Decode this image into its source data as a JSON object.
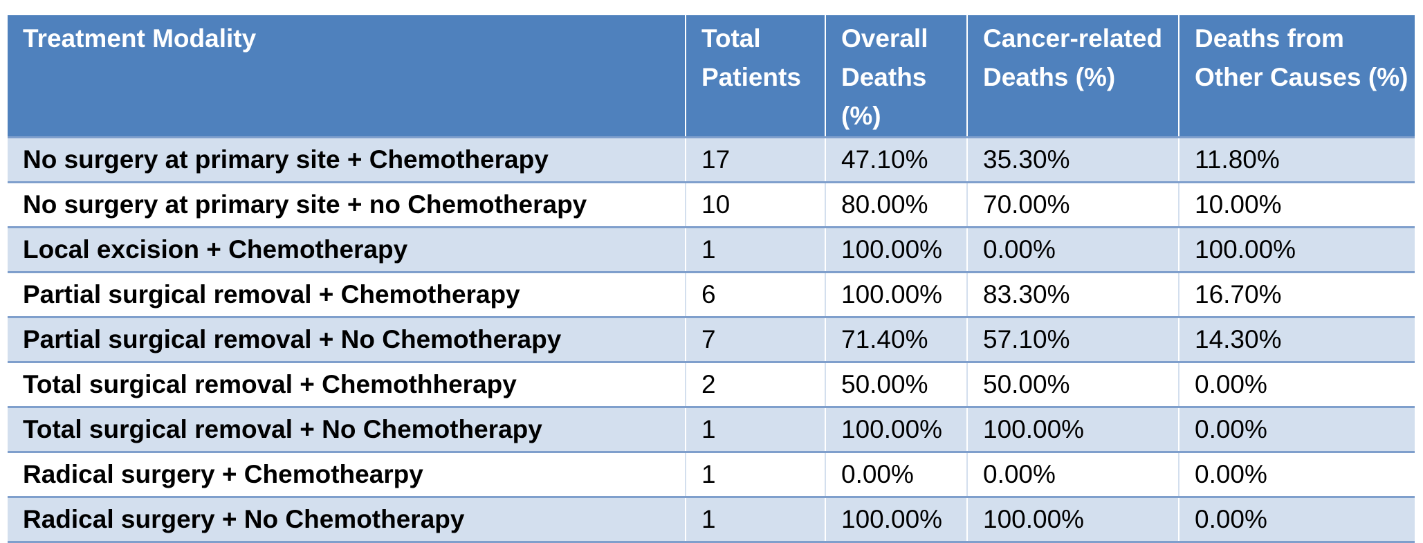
{
  "table": {
    "headers": [
      "Treatment Modality",
      "Total Patients",
      "Overall Deaths (%)",
      "Cancer-related Deaths (%)",
      "Deaths from Other Causes (%)"
    ],
    "rows": [
      [
        "No surgery at primary site + Chemotherapy",
        "17",
        "47.10%",
        "35.30%",
        "11.80%"
      ],
      [
        "No surgery at primary site + no Chemotherapy",
        "10",
        "80.00%",
        "70.00%",
        "10.00%"
      ],
      [
        "Local excision + Chemotherapy",
        "1",
        "100.00%",
        "0.00%",
        "100.00%"
      ],
      [
        "Partial surgical removal + Chemotherapy",
        "6",
        "100.00%",
        "83.30%",
        "16.70%"
      ],
      [
        "Partial surgical removal + No Chemotherapy",
        "7",
        "71.40%",
        "57.10%",
        "14.30%"
      ],
      [
        "Total surgical removal + Chemothherapy",
        "2",
        "50.00%",
        "50.00%",
        "0.00%"
      ],
      [
        "Total surgical removal + No Chemotherapy",
        "1",
        "100.00%",
        "100.00%",
        "0.00%"
      ],
      [
        "Radical surgery + Chemothearpy",
        "1",
        "0.00%",
        "0.00%",
        "0.00%"
      ],
      [
        "Radical surgery + No Chemotherapy",
        "1",
        "100.00%",
        "100.00%",
        "0.00%"
      ]
    ]
  },
  "colors": {
    "header_bg": "#4f81bd",
    "band_bg": "#d3dfee",
    "row_border": "#7f9fcc"
  }
}
